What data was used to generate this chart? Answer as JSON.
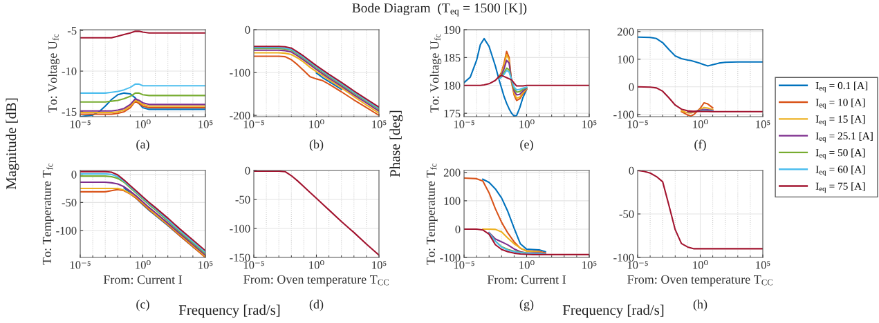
{
  "chart_data": [
    {
      "type": "line",
      "ylabel": "To: Voltage U$_{fc}$",
      "annotations": [
        "(a)",
        "Magnitude [dB]"
      ],
      "log": "x",
      "grid": true,
      "xlim": [
        1e-05,
        100000
      ],
      "xticks": [
        {
          "value": 1e-05,
          "label": "10⁻⁵"
        },
        {
          "value": 1,
          "label": "10⁰"
        },
        {
          "value": 100000,
          "label": "10⁵"
        }
      ],
      "ylim": [
        -15.6,
        -4.9
      ],
      "yticks": [
        -15,
        -10,
        -5
      ],
      "x": [
        1e-05,
        0.0001,
        0.000316,
        0.001,
        0.00316,
        0.01,
        0.0316,
        0.1,
        0.251,
        0.501,
        1,
        3.16,
        10,
        100,
        100000
      ],
      "series": [
        {
          "color": "#0072bd",
          "values": [
            -15.6,
            -15.4,
            -15.0,
            -14.3,
            -13.5,
            -12.9,
            -12.7,
            -12.8,
            -13.3,
            -14.0,
            -14.5,
            -14.7,
            -14.7,
            -14.7,
            -14.7
          ]
        },
        {
          "color": "#d95319",
          "values": [
            -15.3,
            -15.3,
            -15.3,
            -15.3,
            -15.3,
            -15.2,
            -15.0,
            -14.5,
            -13.7,
            -14.0,
            -14.3,
            -14.5,
            -14.5,
            -14.5,
            -14.5
          ]
        },
        {
          "color": "#edb120",
          "values": [
            -15.1,
            -15.1,
            -15.1,
            -15.1,
            -15.1,
            -15.0,
            -14.8,
            -14.3,
            -13.6,
            -13.8,
            -14.1,
            -14.3,
            -14.3,
            -14.3,
            -14.3
          ]
        },
        {
          "color": "#7e2f8e",
          "values": [
            -14.9,
            -14.9,
            -14.9,
            -14.9,
            -14.9,
            -14.8,
            -14.6,
            -14.1,
            -13.4,
            -13.6,
            -13.9,
            -14.1,
            -14.1,
            -14.1,
            -14.1
          ]
        },
        {
          "color": "#77ac30",
          "values": [
            -13.8,
            -13.8,
            -13.8,
            -13.8,
            -13.7,
            -13.6,
            -13.4,
            -13.1,
            -12.7,
            -12.7,
            -12.9,
            -13.0,
            -13.0,
            -13.0,
            -13.0
          ]
        },
        {
          "color": "#4dbeee",
          "values": [
            -12.7,
            -12.7,
            -12.7,
            -12.7,
            -12.6,
            -12.5,
            -12.3,
            -12.0,
            -11.6,
            -11.6,
            -11.8,
            -11.8,
            -11.8,
            -11.8,
            -11.8
          ]
        },
        {
          "color": "#a2142f",
          "values": [
            -5.9,
            -5.9,
            -5.9,
            -5.9,
            -5.9,
            -5.7,
            -5.5,
            -5.3,
            -5.1,
            -5.1,
            -5.2,
            -5.3,
            -5.3,
            -5.3,
            -5.3
          ]
        }
      ]
    },
    {
      "type": "line",
      "annotations": [
        "(b)"
      ],
      "log": "x",
      "grid": true,
      "xlim": [
        1e-05,
        100000
      ],
      "xticks": [
        {
          "value": 1e-05,
          "label": "10⁻⁵"
        },
        {
          "value": 1,
          "label": "10⁰"
        },
        {
          "value": 100000,
          "label": "10⁵"
        }
      ],
      "ylim": [
        -203,
        0
      ],
      "yticks": [
        -200,
        -100,
        0
      ],
      "x": [
        1e-05,
        0.001,
        0.00316,
        0.01,
        0.0316,
        0.1,
        0.316,
        1,
        3.16,
        10,
        100,
        1000,
        10000,
        100000
      ],
      "series": [
        {
          "color": "#0072bd",
          "values": [
            null,
            null,
            null,
            null,
            null,
            null,
            null,
            -101,
            -112,
            -121,
            -139,
            null,
            null,
            null
          ]
        },
        {
          "color": "#d95319",
          "values": [
            -62,
            -62,
            -63,
            -70,
            -82,
            -96,
            -110,
            -115,
            -119,
            -127,
            -145,
            -164,
            -182,
            -200
          ]
        },
        {
          "color": "#edb120",
          "values": [
            -54,
            -54,
            -55,
            -58,
            -66,
            -76,
            -88,
            -98,
            -107,
            -117,
            -136,
            -156,
            -176,
            -195
          ]
        },
        {
          "color": "#7e2f8e",
          "values": [
            -48,
            -48,
            -49,
            -52,
            -61,
            -71,
            -82,
            -93,
            -103,
            -113,
            -132,
            -152,
            -171,
            -190
          ]
        },
        {
          "color": "#77ac30",
          "values": [
            -44,
            -44,
            -45,
            -48,
            -57,
            -67,
            -78,
            -89,
            -99,
            -109,
            -128,
            -148,
            -167,
            -186
          ]
        },
        {
          "color": "#4dbeee",
          "values": [
            -42,
            -42,
            -43,
            -46,
            -55,
            -65,
            -76,
            -87,
            -97,
            -107,
            -126,
            -146,
            -165,
            -184
          ]
        },
        {
          "color": "#a2142f",
          "values": [
            -39,
            -39,
            -40,
            -43,
            -52,
            -62,
            -73,
            -84,
            -94,
            -104,
            -123,
            -143,
            -162,
            -181
          ]
        }
      ]
    },
    {
      "type": "line",
      "ylabel": "To: Temperature T$_{fc}$",
      "xlabel": "From: Current I",
      "annotations": [
        "(c)",
        "Frequency [rad/s]"
      ],
      "log": "x",
      "grid": true,
      "xlim": [
        1e-05,
        100000
      ],
      "xticks": [
        {
          "value": 1e-05,
          "label": "10⁻⁵"
        },
        {
          "value": 1,
          "label": "10⁰"
        },
        {
          "value": 100000,
          "label": "10⁵"
        }
      ],
      "ylim": [
        -148,
        7
      ],
      "yticks": [
        -100,
        -50,
        0
      ],
      "x": [
        1e-05,
        0.001,
        0.00316,
        0.01,
        0.0316,
        0.1,
        0.316,
        1,
        3.16,
        10,
        100,
        1000,
        10000,
        100000
      ],
      "series": [
        {
          "color": "#0072bd",
          "values": [
            null,
            null,
            null,
            null,
            -24,
            -33,
            -43,
            -54,
            -64,
            -73,
            -91,
            -110,
            -129,
            -147
          ]
        },
        {
          "color": "#d95319",
          "values": [
            -31,
            -31,
            -29,
            -27,
            -29,
            -35,
            -43,
            -53,
            -63,
            -72,
            -90,
            -110,
            -129,
            -148
          ]
        },
        {
          "color": "#edb120",
          "values": [
            -25,
            -25,
            -25,
            -25,
            -28,
            -34,
            -41,
            -51,
            -61,
            -71,
            -89,
            -108,
            -127,
            -146
          ]
        },
        {
          "color": "#7e2f8e",
          "values": [
            -14,
            -14,
            -15,
            -17,
            -22,
            -30,
            -39,
            -49,
            -59,
            -68,
            -87,
            -106,
            -125,
            -144
          ]
        },
        {
          "color": "#77ac30",
          "values": [
            -3,
            -3,
            -4,
            -7,
            -14,
            -24,
            -34,
            -44,
            -54,
            -63,
            -83,
            -103,
            -122,
            -141
          ]
        },
        {
          "color": "#4dbeee",
          "values": [
            1,
            1,
            0,
            -4,
            -12,
            -22,
            -32,
            -42,
            -52,
            -61,
            -81,
            -101,
            -120,
            -139
          ]
        },
        {
          "color": "#a2142f",
          "values": [
            5,
            5,
            4,
            -1,
            -10,
            -20,
            -30,
            -40,
            -50,
            -59,
            -78,
            -98,
            -117,
            -136
          ]
        }
      ]
    },
    {
      "type": "line",
      "xlabel": "From: Oven temperature T$_{CC}$",
      "annotations": [
        "(d)"
      ],
      "log": "x",
      "grid": true,
      "xlim": [
        1e-05,
        100000
      ],
      "xticks": [
        {
          "value": 1e-05,
          "label": "10⁻⁵"
        },
        {
          "value": 1,
          "label": "10⁰"
        },
        {
          "value": 100000,
          "label": "10⁵"
        }
      ],
      "ylim": [
        -150,
        0
      ],
      "yticks": [
        -150,
        -100,
        -50,
        0
      ],
      "x": [
        1e-05,
        0.001,
        0.00316,
        0.01,
        0.0316,
        0.1,
        0.316,
        1,
        3.16,
        10,
        100,
        1000,
        10000,
        100000
      ],
      "series": [
        {
          "color": "#a2142f",
          "values": [
            -1,
            -1,
            -2,
            -9,
            -18,
            -28,
            -38,
            -48,
            -58,
            -68,
            -88,
            -107,
            -127,
            -146
          ]
        }
      ]
    },
    {
      "type": "line",
      "title": "Bode Diagram  (T$_{eq}$ = 1500 [K])",
      "ylabel": "To: Voltage U$_{fc}$",
      "annotations": [
        "(e)",
        "Phase [deg]"
      ],
      "log": "x",
      "grid": true,
      "xlim": [
        1e-05,
        100000
      ],
      "xticks": [
        {
          "value": 1e-05,
          "label": "10⁻⁵"
        },
        {
          "value": 1,
          "label": "10⁰"
        },
        {
          "value": 100000,
          "label": "10⁵"
        }
      ],
      "ylim": [
        174.4,
        190
      ],
      "yticks": [
        175,
        180,
        185,
        190
      ],
      "x": [
        1e-05,
        3.16e-05,
        0.0001,
        0.0002,
        0.0004,
        0.001,
        0.00316,
        0.00631,
        0.01,
        0.0158,
        0.0251,
        0.0398,
        0.0631,
        0.1,
        0.158,
        0.282,
        0.501,
        1,
        3.16,
        10,
        100,
        100000
      ],
      "series": [
        {
          "color": "#0072bd",
          "values": [
            180.5,
            181.5,
            184.5,
            187.3,
            188.4,
            187,
            183.5,
            181,
            179.5,
            178,
            176.8,
            175.8,
            175,
            174.5,
            174.6,
            176,
            177.8,
            179.3,
            null,
            null,
            null,
            null
          ]
        },
        {
          "color": "#d95319",
          "values": [
            null,
            null,
            null,
            null,
            null,
            null,
            null,
            181.6,
            182.4,
            184,
            186.1,
            185,
            180.5,
            178.3,
            177.3,
            177.6,
            178.5,
            179.3,
            null,
            null,
            null,
            null
          ]
        },
        {
          "color": "#edb120",
          "values": [
            null,
            null,
            null,
            null,
            null,
            null,
            null,
            181.5,
            182.2,
            183.6,
            185.5,
            184.6,
            180.6,
            178.6,
            177.7,
            177.9,
            178.7,
            179.4,
            null,
            null,
            null,
            null
          ]
        },
        {
          "color": "#7e2f8e",
          "values": [
            null,
            null,
            null,
            null,
            null,
            null,
            null,
            181.3,
            181.9,
            183,
            184.5,
            184,
            180.8,
            179,
            178.3,
            178.4,
            179,
            179.5,
            null,
            null,
            null,
            null
          ]
        },
        {
          "color": "#77ac30",
          "values": [
            null,
            null,
            null,
            null,
            null,
            null,
            null,
            181.2,
            181.6,
            182.3,
            183.1,
            182.8,
            180.9,
            179.4,
            178.8,
            178.9,
            179.3,
            179.6,
            null,
            null,
            null,
            null
          ]
        },
        {
          "color": "#4dbeee",
          "values": [
            null,
            null,
            null,
            null,
            null,
            null,
            null,
            181.1,
            181.5,
            182,
            182.7,
            182.4,
            181,
            179.7,
            179.2,
            179.3,
            179.5,
            179.7,
            null,
            null,
            null,
            null
          ]
        },
        {
          "color": "#a2142f",
          "values": [
            180,
            180,
            180,
            180,
            180.1,
            180.3,
            180.9,
            181.6,
            181.8,
            181.6,
            181.4,
            181.2,
            181,
            180.4,
            179.9,
            179.9,
            179.9,
            180,
            180,
            180,
            180,
            180
          ]
        }
      ]
    },
    {
      "type": "line",
      "annotations": [
        "(f)"
      ],
      "log": "x",
      "grid": true,
      "legend": "right",
      "xlim": [
        1e-05,
        100000
      ],
      "xticks": [
        {
          "value": 1e-05,
          "label": "10⁻⁵"
        },
        {
          "value": 1,
          "label": "10⁰"
        },
        {
          "value": 100000,
          "label": "10⁵"
        }
      ],
      "ylim": [
        -108,
        207
      ],
      "yticks": [
        -100,
        0,
        100,
        200
      ],
      "x": [
        1e-05,
        0.0001,
        0.000316,
        0.001,
        0.00316,
        0.01,
        0.0316,
        0.1,
        0.178,
        0.316,
        1,
        2,
        3.98,
        10,
        31.6,
        100,
        1000,
        100000
      ],
      "series": [
        {
          "name": "I$_{eq}$ = 0.1 [A]",
          "color": "#0072bd",
          "values": [
            180,
            179,
            175,
            160,
            135,
            112,
            102,
            97,
            95,
            92,
            85,
            80,
            76,
            80,
            86,
            89,
            90,
            90
          ]
        },
        {
          "name": "I$_{eq}$ = 10 [A]",
          "color": "#d95319",
          "values": [
            null,
            null,
            null,
            null,
            null,
            null,
            -90,
            -102,
            -106,
            -100,
            -78,
            -58,
            -62,
            -76,
            null,
            null,
            null,
            null
          ]
        },
        {
          "name": "I$_{eq}$ = 15 [A]",
          "color": "#edb120",
          "values": [
            null,
            null,
            null,
            null,
            null,
            null,
            -87,
            -94,
            -95,
            -92,
            -82,
            -75,
            -77,
            -83,
            null,
            null,
            null,
            null
          ]
        },
        {
          "name": "I$_{eq}$ = 25.1 [A]",
          "color": "#7e2f8e",
          "values": [
            null,
            null,
            null,
            null,
            null,
            null,
            null,
            -90,
            -91,
            -90,
            -85,
            -82,
            -83,
            -86,
            null,
            null,
            null,
            null
          ]
        },
        {
          "name": "I$_{eq}$ = 50 [A]",
          "color": "#77ac30",
          "values": [
            null,
            null,
            null,
            null,
            null,
            null,
            null,
            null,
            null,
            null,
            null,
            null,
            null,
            null,
            null,
            null,
            null,
            null
          ]
        },
        {
          "name": "I$_{eq}$ = 60 [A]",
          "color": "#4dbeee",
          "values": [
            null,
            null,
            null,
            null,
            null,
            null,
            null,
            null,
            null,
            null,
            -87,
            -85,
            -86,
            -88,
            null,
            null,
            null,
            null
          ]
        },
        {
          "name": "I$_{eq}$ = 75 [A]",
          "color": "#a2142f",
          "values": [
            0,
            -1,
            -4,
            -16,
            -40,
            -66,
            -81,
            -87,
            -88,
            -89,
            -89,
            -89,
            -89,
            -90,
            -90,
            -90,
            -90,
            -90
          ]
        }
      ]
    },
    {
      "type": "line",
      "ylabel": "To: Temperature T$_{fc}$",
      "xlabel": "From: Current I",
      "annotations": [
        "(g)",
        "Frequency [rad/s]"
      ],
      "log": "x",
      "grid": true,
      "xlim": [
        1e-05,
        100000
      ],
      "xticks": [
        {
          "value": 1e-05,
          "label": "10⁻⁵"
        },
        {
          "value": 1,
          "label": "10⁰"
        },
        {
          "value": 100000,
          "label": "10⁵"
        }
      ],
      "ylim": [
        -100,
        207
      ],
      "yticks": [
        -100,
        0,
        100,
        200
      ],
      "x": [
        1e-05,
        0.0001,
        0.000316,
        0.001,
        0.00316,
        0.01,
        0.0316,
        0.1,
        0.316,
        1,
        3.16,
        10,
        31.6,
        100,
        1000,
        100000
      ],
      "series": [
        {
          "color": "#0072bd",
          "values": [
            null,
            null,
            176,
            165,
            142,
            110,
            62,
            3,
            -52,
            -71,
            -72,
            -73,
            -80,
            null,
            null,
            null
          ]
        },
        {
          "color": "#d95319",
          "values": [
            180,
            178,
            170,
            128,
            72,
            24,
            -14,
            -45,
            -68,
            -77,
            -78,
            -79,
            -84,
            null,
            null,
            null
          ]
        },
        {
          "color": "#edb120",
          "values": [
            null,
            null,
            0,
            0,
            -1,
            -10,
            -32,
            -52,
            -67,
            -78,
            -80,
            -81,
            -86,
            null,
            null,
            null
          ]
        },
        {
          "color": "#7e2f8e",
          "values": [
            null,
            null,
            null,
            -12,
            -35,
            -45,
            -56,
            -70,
            -80,
            -84,
            -84,
            -84,
            -87,
            null,
            null,
            null
          ]
        },
        {
          "color": "#77ac30",
          "values": [
            null,
            null,
            null,
            -14,
            -42,
            -62,
            -72,
            -78,
            -82,
            -84,
            null,
            null,
            null,
            null,
            null,
            null
          ]
        },
        {
          "color": "#4dbeee",
          "values": [
            null,
            null,
            null,
            -14,
            -43,
            -64,
            -74,
            -80,
            -83,
            -85,
            -86,
            -86,
            -88,
            null,
            null,
            null
          ]
        },
        {
          "color": "#a2142f",
          "values": [
            0,
            0,
            -3,
            -18,
            -55,
            -72,
            -80,
            -85,
            -88,
            -89,
            -90,
            -90,
            -90,
            -90,
            -90,
            -90
          ]
        }
      ]
    },
    {
      "type": "line",
      "xlabel": "From: Oven temperature T$_{CC}$",
      "annotations": [
        "(h)"
      ],
      "log": "x",
      "grid": true,
      "xlim": [
        1e-05,
        100000
      ],
      "xticks": [
        {
          "value": 1e-05,
          "label": "10⁻⁵"
        },
        {
          "value": 1,
          "label": "10⁰"
        },
        {
          "value": 100000,
          "label": "10⁵"
        }
      ],
      "ylim": [
        -100,
        0
      ],
      "yticks": [
        -100,
        -50,
        0
      ],
      "x": [
        1e-05,
        3.16e-05,
        0.0001,
        0.000316,
        0.001,
        0.00316,
        0.01,
        0.0316,
        0.1,
        0.316,
        1,
        100000
      ],
      "series": [
        {
          "color": "#a2142f",
          "values": [
            0,
            -1,
            -3,
            -7,
            -13,
            -40,
            -68,
            -84,
            -88,
            -90,
            -90,
            -90
          ]
        }
      ]
    }
  ]
}
